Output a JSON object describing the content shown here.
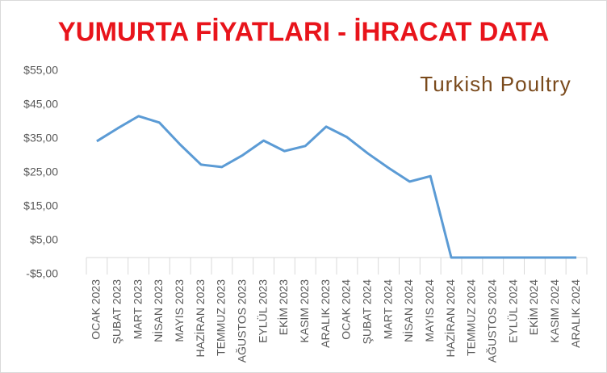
{
  "chart_data": {
    "type": "line",
    "title": "YUMURTA FİYATLARI - İHRACAT DATA",
    "logo": "Turkish Poultry",
    "categories": [
      "OCAK 2023",
      "ŞUBAT 2023",
      "MART 2023",
      "NİSAN 2023",
      "MAYIS 2023",
      "HAZİRAN 2023",
      "TEMMUZ 2023",
      "AĞUSTOS 2023",
      "EYLÜL 2023",
      "EKİM 2023",
      "KASIM 2023",
      "ARALIK 2023",
      "OCAK 2024",
      "ŞUBAT 2024",
      "MART 2024",
      "NİSAN 2024",
      "MAYIS 2024",
      "HAZİRAN 2024",
      "TEMMUZ 2024",
      "AĞUSTOS 2024",
      "EYLÜL 2024",
      "EKİM 2024",
      "KASIM 2024",
      "ARALIK 2024"
    ],
    "series": [
      {
        "color": "#5b9bd5",
        "values": [
          34.3,
          38.1,
          41.7,
          39.8,
          33.3,
          27.4,
          26.7,
          30.2,
          34.5,
          31.4,
          32.9,
          38.6,
          35.5,
          30.7,
          26.4,
          22.4,
          24.0,
          0,
          0,
          0,
          0,
          0,
          0,
          0
        ]
      }
    ],
    "ylim": [
      -5,
      55
    ],
    "yticks": [
      {
        "value": -5,
        "label": "-$5,00"
      },
      {
        "value": 5,
        "label": "$5,00"
      },
      {
        "value": 15,
        "label": "$15,00"
      },
      {
        "value": 25,
        "label": "$25,00"
      },
      {
        "value": 35,
        "label": "$35,00"
      },
      {
        "value": 45,
        "label": "$45,00"
      },
      {
        "value": 55,
        "label": "$55,00"
      }
    ],
    "grid": false
  }
}
